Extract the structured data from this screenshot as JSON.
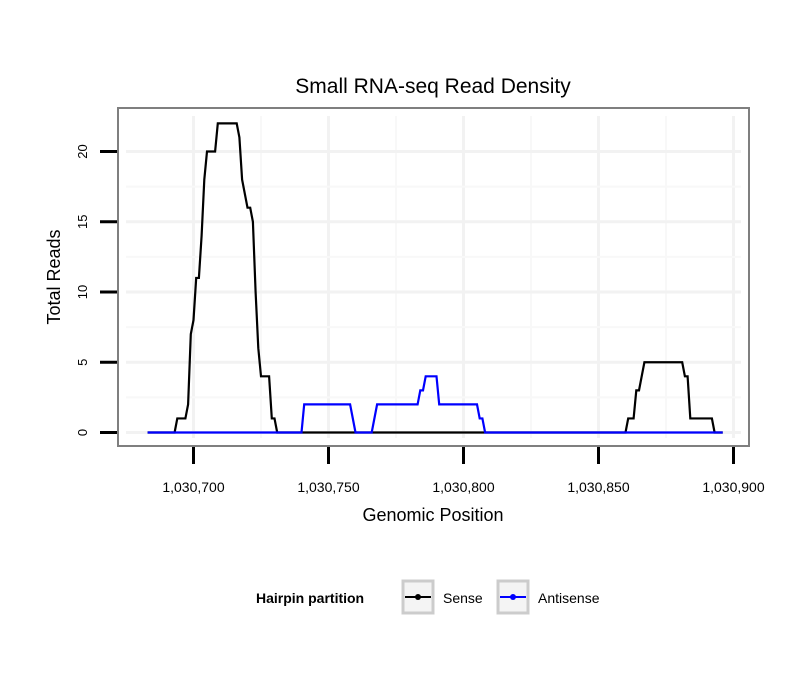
{
  "chart_data": {
    "type": "line",
    "title": "Small RNA-seq Read Density",
    "xlabel": "Genomic Position",
    "ylabel": "Total Reads",
    "xlim": [
      1030680,
      1030900
    ],
    "ylim": [
      -1,
      22.5
    ],
    "x_ticks": [
      1030700,
      1030750,
      1030800,
      1030850,
      1030900
    ],
    "x_tick_labels": [
      "1,030,700",
      "1,030,750",
      "1,030,800",
      "1,030,850",
      "1,030,900"
    ],
    "y_ticks": [
      0,
      5,
      10,
      15,
      20
    ],
    "y_tick_labels": [
      "0",
      "5",
      "10",
      "15",
      "20"
    ],
    "grid": true,
    "legend": {
      "title": "Hairpin partition",
      "position": "bottom"
    },
    "series": [
      {
        "name": "Sense",
        "color": "#000000",
        "points": [
          [
            1030683,
            0
          ],
          [
            1030693,
            0
          ],
          [
            1030694,
            1
          ],
          [
            1030697,
            1
          ],
          [
            1030698,
            2
          ],
          [
            1030699,
            7
          ],
          [
            1030700,
            8
          ],
          [
            1030701,
            11
          ],
          [
            1030702,
            11
          ],
          [
            1030703,
            14
          ],
          [
            1030704,
            18
          ],
          [
            1030705,
            20
          ],
          [
            1030708,
            20
          ],
          [
            1030709,
            22
          ],
          [
            1030716,
            22
          ],
          [
            1030717,
            21
          ],
          [
            1030718,
            18
          ],
          [
            1030720,
            16
          ],
          [
            1030721,
            16
          ],
          [
            1030722,
            15
          ],
          [
            1030723,
            10
          ],
          [
            1030724,
            6
          ],
          [
            1030725,
            4
          ],
          [
            1030728,
            4
          ],
          [
            1030729,
            1
          ],
          [
            1030730,
            1
          ],
          [
            1030731,
            0
          ],
          [
            1030860,
            0
          ],
          [
            1030861,
            1
          ],
          [
            1030863,
            1
          ],
          [
            1030864,
            3
          ],
          [
            1030865,
            3
          ],
          [
            1030866,
            4
          ],
          [
            1030867,
            5
          ],
          [
            1030881,
            5
          ],
          [
            1030882,
            4
          ],
          [
            1030883,
            4
          ],
          [
            1030884,
            1
          ],
          [
            1030892,
            1
          ],
          [
            1030893,
            0
          ],
          [
            1030896,
            0
          ]
        ]
      },
      {
        "name": "Antisense",
        "color": "#0000ff",
        "points": [
          [
            1030683,
            0
          ],
          [
            1030740,
            0
          ],
          [
            1030741,
            2
          ],
          [
            1030758,
            2
          ],
          [
            1030760,
            0
          ],
          [
            1030766,
            0
          ],
          [
            1030768,
            2
          ],
          [
            1030783,
            2
          ],
          [
            1030784,
            3
          ],
          [
            1030785,
            3
          ],
          [
            1030786,
            4
          ],
          [
            1030790,
            4
          ],
          [
            1030791,
            2
          ],
          [
            1030805,
            2
          ],
          [
            1030806,
            1
          ],
          [
            1030807,
            1
          ],
          [
            1030808,
            0
          ],
          [
            1030896,
            0
          ]
        ]
      }
    ]
  }
}
